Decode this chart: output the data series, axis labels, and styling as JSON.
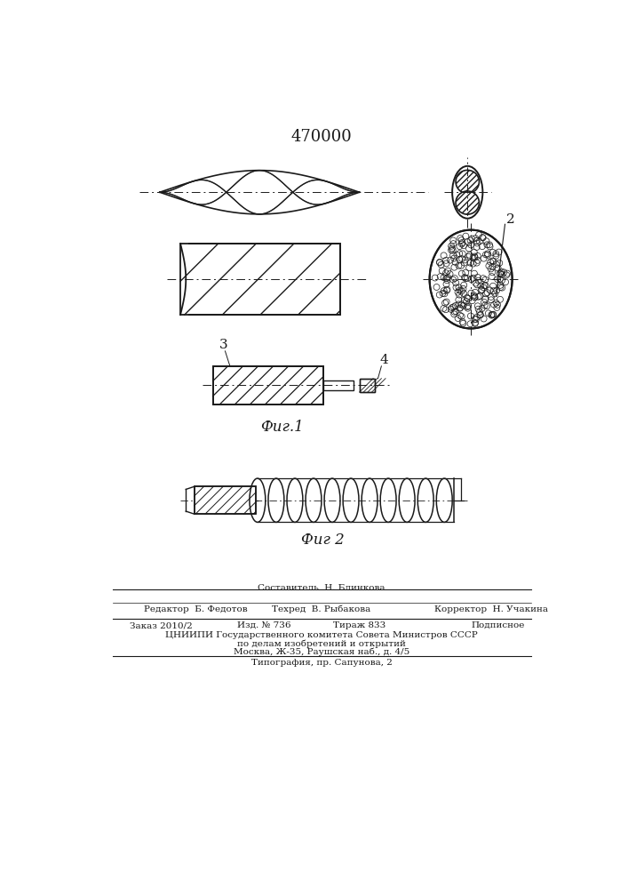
{
  "title": "470000",
  "title_fontsize": 13,
  "fig_width": 7.07,
  "fig_height": 10.0,
  "bg_color": "#ffffff",
  "line_color": "#1a1a1a",
  "fig1_caption": "Фиг.1",
  "fig2_caption": "Фиг 2",
  "label_3": "3",
  "label_4": "4",
  "label_2": "2",
  "footer_line1": "Составитель  Н. Блинкова",
  "footer_line2": "Редактор  Б. Федотов",
  "footer_line2b": "Техред  В. Рыбакова",
  "footer_line2c": "Корректор  Н. Учакина",
  "footer_line3a": "Заказ 2010/2",
  "footer_line3b": "Изд. № 736",
  "footer_line3c": "Тираж 833",
  "footer_line3d": "Подписное",
  "footer_line4": "ЦНИИПИ Государственного комитета Совета Министров СССР",
  "footer_line5": "по делам изобретений и открытий",
  "footer_line6": "Москва, Ж-35, Раушская наб., д. 4/5",
  "footer_line7": "Типография, пр. Сапунова, 2"
}
